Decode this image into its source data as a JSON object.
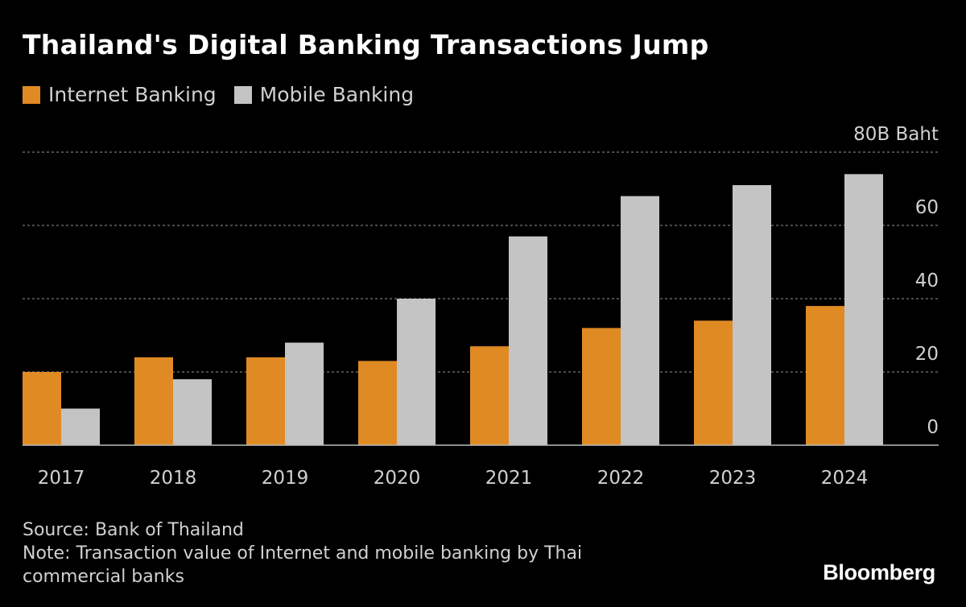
{
  "title": "Thailand's Digital Banking Transactions Jump",
  "colors": {
    "internet": "#E08A24",
    "mobile": "#C4C4C4",
    "background": "#000000",
    "grid": "#7a7a7a",
    "axis_text": "#d0d0d0"
  },
  "footer": {
    "source": "Source: Bank of Thailand",
    "note": "Note: Transaction value of Internet and mobile banking by Thai commercial banks"
  },
  "brand": "Bloomberg",
  "chart_data": {
    "type": "bar",
    "categories": [
      "2017",
      "2018",
      "2019",
      "2020",
      "2021",
      "2022",
      "2023",
      "2024"
    ],
    "series": [
      {
        "name": "Internet Banking",
        "values": [
          20,
          24,
          24,
          23,
          27,
          32,
          34,
          38
        ]
      },
      {
        "name": "Mobile Banking",
        "values": [
          10,
          18,
          28,
          40,
          57,
          68,
          71,
          74
        ]
      }
    ],
    "ylim": [
      0,
      80
    ],
    "yticks": [
      0,
      20,
      40,
      60,
      80
    ],
    "ytick_labels": [
      "0",
      "20",
      "40",
      "60",
      "80B Baht"
    ],
    "grid": true,
    "legend_position": "top-left",
    "y_axis_position": "right"
  }
}
